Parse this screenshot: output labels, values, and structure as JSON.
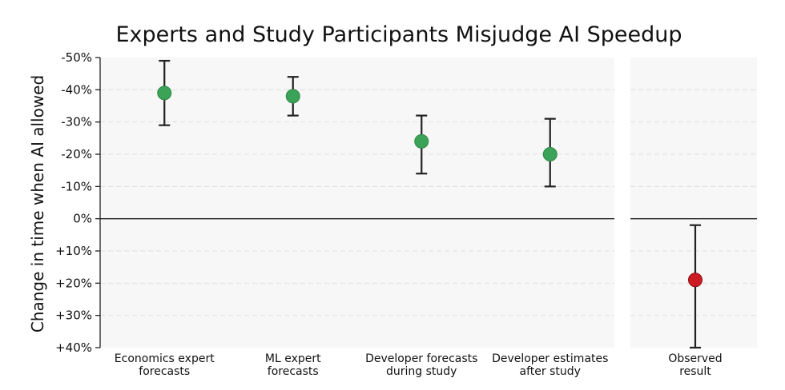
{
  "chart_data": {
    "type": "scatter",
    "title": "Experts and Study Participants Misjudge AI Speedup",
    "ylabel": "Change in time when AI allowed",
    "ylim": [
      -50,
      40
    ],
    "y_ticks": [
      -50,
      -40,
      -30,
      -20,
      -10,
      0,
      10,
      20,
      30,
      40
    ],
    "y_tick_labels": [
      "-50%",
      "-40%",
      "-30%",
      "-20%",
      "-10%",
      "0%",
      "+10%",
      "+20%",
      "+30%",
      "+40%"
    ],
    "colors": {
      "forecast": "#3aa357",
      "observed": "#cc1b23",
      "panel": "#f7f7f7"
    },
    "series": [
      {
        "name": "Forecasts",
        "points": [
          {
            "label_lines": [
              "Economics expert",
              "forecasts"
            ],
            "value": -39,
            "low": -49,
            "high": -29
          },
          {
            "label_lines": [
              "ML expert",
              "forecasts"
            ],
            "value": -38,
            "low": -44,
            "high": -32
          },
          {
            "label_lines": [
              "Developer forecasts",
              "during study"
            ],
            "value": -24,
            "low": -32,
            "high": -14
          },
          {
            "label_lines": [
              "Developer estimates",
              "after study"
            ],
            "value": -20,
            "low": -31,
            "high": -10
          }
        ]
      },
      {
        "name": "Observed",
        "points": [
          {
            "label_lines": [
              "Observed",
              "result"
            ],
            "value": 19,
            "low": 2,
            "high": 40
          }
        ]
      }
    ]
  }
}
